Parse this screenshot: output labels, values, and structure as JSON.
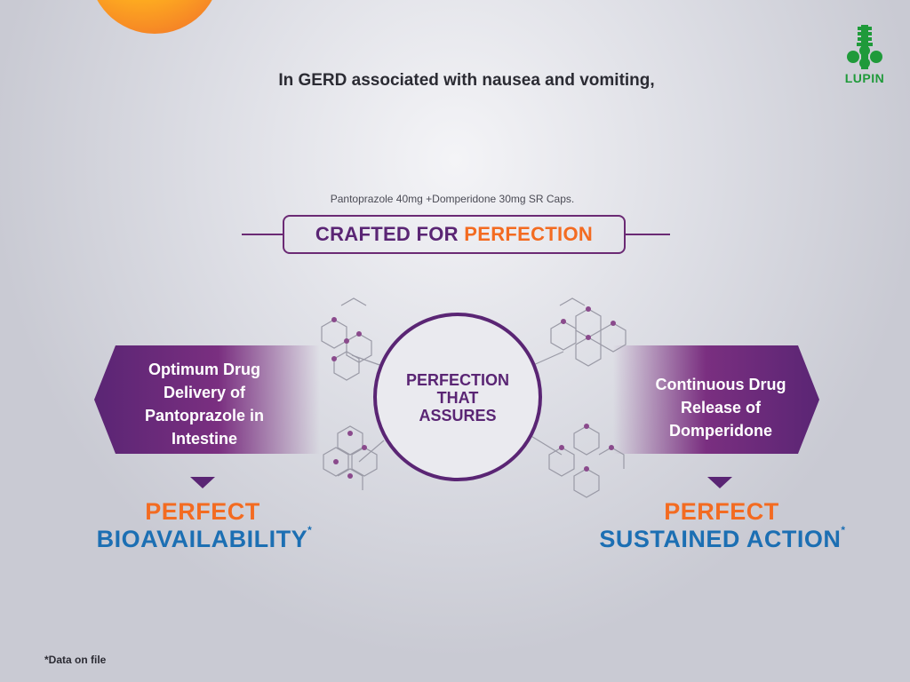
{
  "brand": {
    "logo_text": "LUPIN",
    "color": "#1f9a3a"
  },
  "headline": "In GERD associated with nausea and vomiting,",
  "product": "Pantoprazole 40mg +Domperidone 30mg SR Caps.",
  "tagline": {
    "part1": "CRAFTED FOR",
    "part2": "PERFECTION"
  },
  "center": {
    "line1": "PERFECTION",
    "line2": "THAT",
    "line3": "ASSURES"
  },
  "left": {
    "banner_lines": [
      "Optimum Drug",
      "Delivery of",
      "Pantoprazole in",
      "Intestine"
    ],
    "perfect": "PERFECT",
    "benefit": "BIOAVAILABILITY",
    "mark": "*"
  },
  "right": {
    "banner_lines": [
      "Continuous Drug",
      "Release of",
      "Domperidone"
    ],
    "perfect": "PERFECT",
    "benefit": "SUSTAINED ACTION",
    "mark": "*"
  },
  "footnote": "*Data on file",
  "colors": {
    "purple": "#5a2574",
    "orange": "#f36b21",
    "blue": "#1c6fb3"
  }
}
